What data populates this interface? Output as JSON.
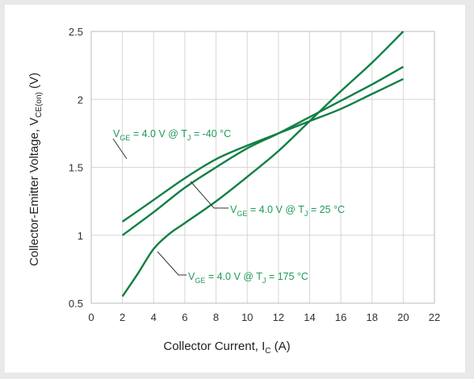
{
  "chart_data": {
    "type": "line",
    "xlabel": {
      "main": "Collector Current, I",
      "sub": "C",
      "suffix": " (A)"
    },
    "ylabel": {
      "main": "Collector-Emitter Voltage, V",
      "sub": "CE(on)",
      "suffix": " (V)"
    },
    "xlim": [
      0,
      22
    ],
    "ylim": [
      0.5,
      2.5
    ],
    "xticks": [
      "0",
      "2",
      "4",
      "6",
      "8",
      "10",
      "12",
      "14",
      "16",
      "18",
      "20",
      "22"
    ],
    "yticks": [
      "0.5",
      "1",
      "1.5",
      "2",
      "2.5"
    ],
    "grid": true,
    "line_color": "#118044",
    "annotation_color": "#1f9a5a",
    "series": [
      {
        "annotation": {
          "v": "V",
          "vsub": "GE",
          "mid": " = 4.0 V @ T",
          "tsub": "J",
          "end": " = -40 °C"
        },
        "x": [
          2,
          4,
          6,
          8,
          10,
          12,
          14,
          16,
          18,
          20
        ],
        "y": [
          1.1,
          1.26,
          1.42,
          1.56,
          1.66,
          1.75,
          1.84,
          1.93,
          2.04,
          2.15
        ]
      },
      {
        "annotation": {
          "v": "V",
          "vsub": "GE",
          "mid": " = 4.0 V @ T",
          "tsub": "J",
          "end": " = 25 °C"
        },
        "x": [
          2,
          4,
          6,
          8,
          10,
          12,
          14,
          16,
          18,
          20
        ],
        "y": [
          1.0,
          1.17,
          1.35,
          1.5,
          1.64,
          1.75,
          1.87,
          1.99,
          2.11,
          2.24
        ]
      },
      {
        "annotation": {
          "v": "V",
          "vsub": "GE",
          "mid": " = 4.0 V @ T",
          "tsub": "J",
          "end": " = 175 °C"
        },
        "x": [
          2,
          3,
          4,
          5,
          6,
          8,
          10,
          12,
          14,
          16,
          18,
          20
        ],
        "y": [
          0.55,
          0.72,
          0.9,
          1.01,
          1.09,
          1.25,
          1.43,
          1.62,
          1.84,
          2.06,
          2.27,
          2.5
        ]
      }
    ]
  }
}
